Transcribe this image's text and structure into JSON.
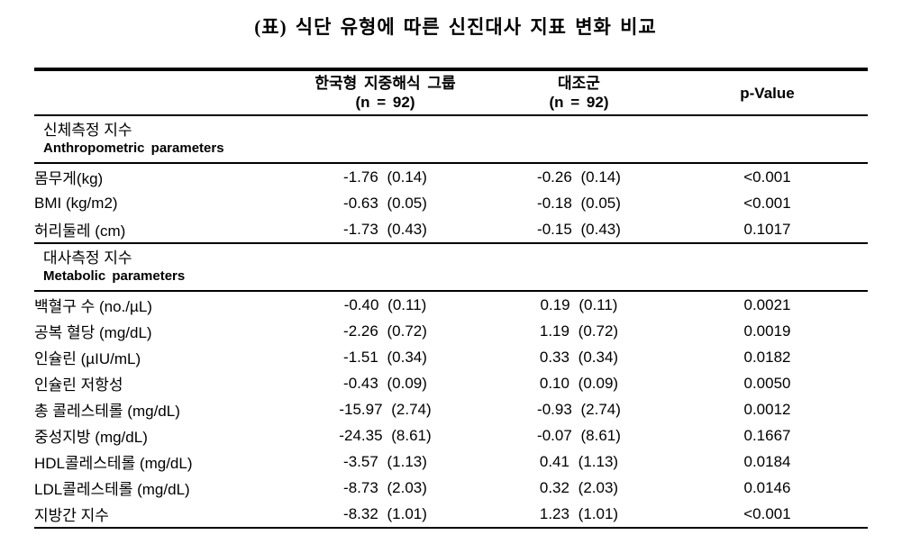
{
  "title": "(표) 식단 유형에 따른 신진대사 지표 변화 비교",
  "colors": {
    "background": "#ffffff",
    "text": "#000000",
    "rule": "#000000"
  },
  "table": {
    "header": {
      "group1_line1": "한국형 지중해식 그룹",
      "group1_line2": "(n = 92)",
      "group2_line1": "대조군",
      "group2_line2": "(n = 92)",
      "pvalue": "p-Value"
    },
    "sections": [
      {
        "heading_ko": "신체측정 지수",
        "heading_en": "Anthropometric parameters",
        "rows": [
          {
            "label": "몸무게(kg)",
            "group1": "-1.76 (0.14)",
            "group2": "-0.26 (0.14)",
            "p": "<0.001"
          },
          {
            "label": "BMI (kg/m2)",
            "group1": "-0.63 (0.05)",
            "group2": "-0.18 (0.05)",
            "p": "<0.001"
          },
          {
            "label": "허리둘레 (cm)",
            "group1": "-1.73 (0.43)",
            "group2": "-0.15 (0.43)",
            "p": "0.1017"
          }
        ]
      },
      {
        "heading_ko": "대사측정 지수",
        "heading_en": "Metabolic parameters",
        "rows": [
          {
            "label": "백혈구 수 (no./µL)",
            "group1": "-0.40 (0.11)",
            "group2": "0.19 (0.11)",
            "p": "0.0021"
          },
          {
            "label": "공복 혈당 (mg/dL)",
            "group1": "-2.26 (0.72)",
            "group2": "1.19 (0.72)",
            "p": "0.0019"
          },
          {
            "label": "인슐린 (µIU/mL)",
            "group1": "-1.51 (0.34)",
            "group2": "0.33 (0.34)",
            "p": "0.0182"
          },
          {
            "label": "인슐린 저항성",
            "group1": "-0.43 (0.09)",
            "group2": "0.10 (0.09)",
            "p": "0.0050"
          },
          {
            "label": "총 콜레스테롤 (mg/dL)",
            "group1": "-15.97 (2.74)",
            "group2": "-0.93 (2.74)",
            "p": "0.0012"
          },
          {
            "label": "중성지방 (mg/dL)",
            "group1": "-24.35 (8.61)",
            "group2": "-0.07 (8.61)",
            "p": "0.1667"
          },
          {
            "label": "HDL콜레스테롤 (mg/dL)",
            "group1": "-3.57 (1.13)",
            "group2": "0.41 (1.13)",
            "p": "0.0184"
          },
          {
            "label": "LDL콜레스테롤 (mg/dL)",
            "group1": "-8.73 (2.03)",
            "group2": "0.32 (2.03)",
            "p": "0.0146"
          },
          {
            "label": "지방간 지수",
            "group1": "-8.32 (1.01)",
            "group2": "1.23 (1.01)",
            "p": "<0.001"
          }
        ]
      }
    ]
  }
}
